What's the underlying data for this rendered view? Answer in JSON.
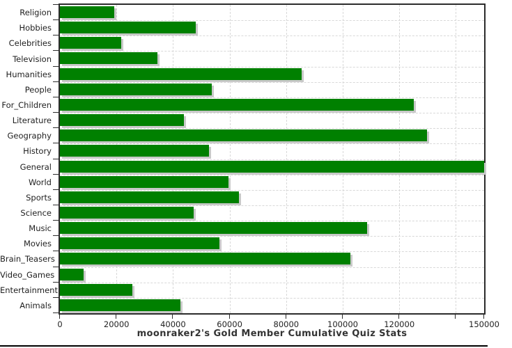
{
  "chart_data": {
    "type": "bar",
    "orientation": "horizontal",
    "title": "moonraker2's Gold Member Cumulative Quiz Stats",
    "categories": [
      "Religion",
      "Hobbies",
      "Celebrities",
      "Television",
      "Humanities",
      "People",
      "For_Children",
      "Literature",
      "Geography",
      "History",
      "General",
      "World",
      "Sports",
      "Science",
      "Music",
      "Movies",
      "Brain_Teasers",
      "Video_Games",
      "Entertainment",
      "Animals"
    ],
    "values": [
      19100,
      48000,
      21700,
      34500,
      85400,
      53800,
      125000,
      43800,
      129800,
      52800,
      150000,
      59700,
      63400,
      47200,
      108700,
      56300,
      102800,
      8300,
      25500,
      42500
    ],
    "xlabel": "",
    "ylabel": "",
    "xlim": [
      0,
      150000
    ],
    "x_ticks": [
      {
        "value": 0,
        "label": "0"
      },
      {
        "value": 20000,
        "label": "20000"
      },
      {
        "value": 40000,
        "label": "40000"
      },
      {
        "value": 60000,
        "label": "60000"
      },
      {
        "value": 80000,
        "label": "80000"
      },
      {
        "value": 100000,
        "label": "100000"
      },
      {
        "value": 120000,
        "label": "120000"
      },
      {
        "value": 140000,
        "label": ""
      },
      {
        "value": 150000,
        "label": "150000"
      }
    ],
    "grid": "dashed vertical and horizontal",
    "legend": "none",
    "bar_color": "#008000",
    "shadow_color": "#c9c9c9",
    "border_color": "#2b2b2b",
    "gridline_color": "#d8d8d8",
    "background": "#ffffff"
  }
}
